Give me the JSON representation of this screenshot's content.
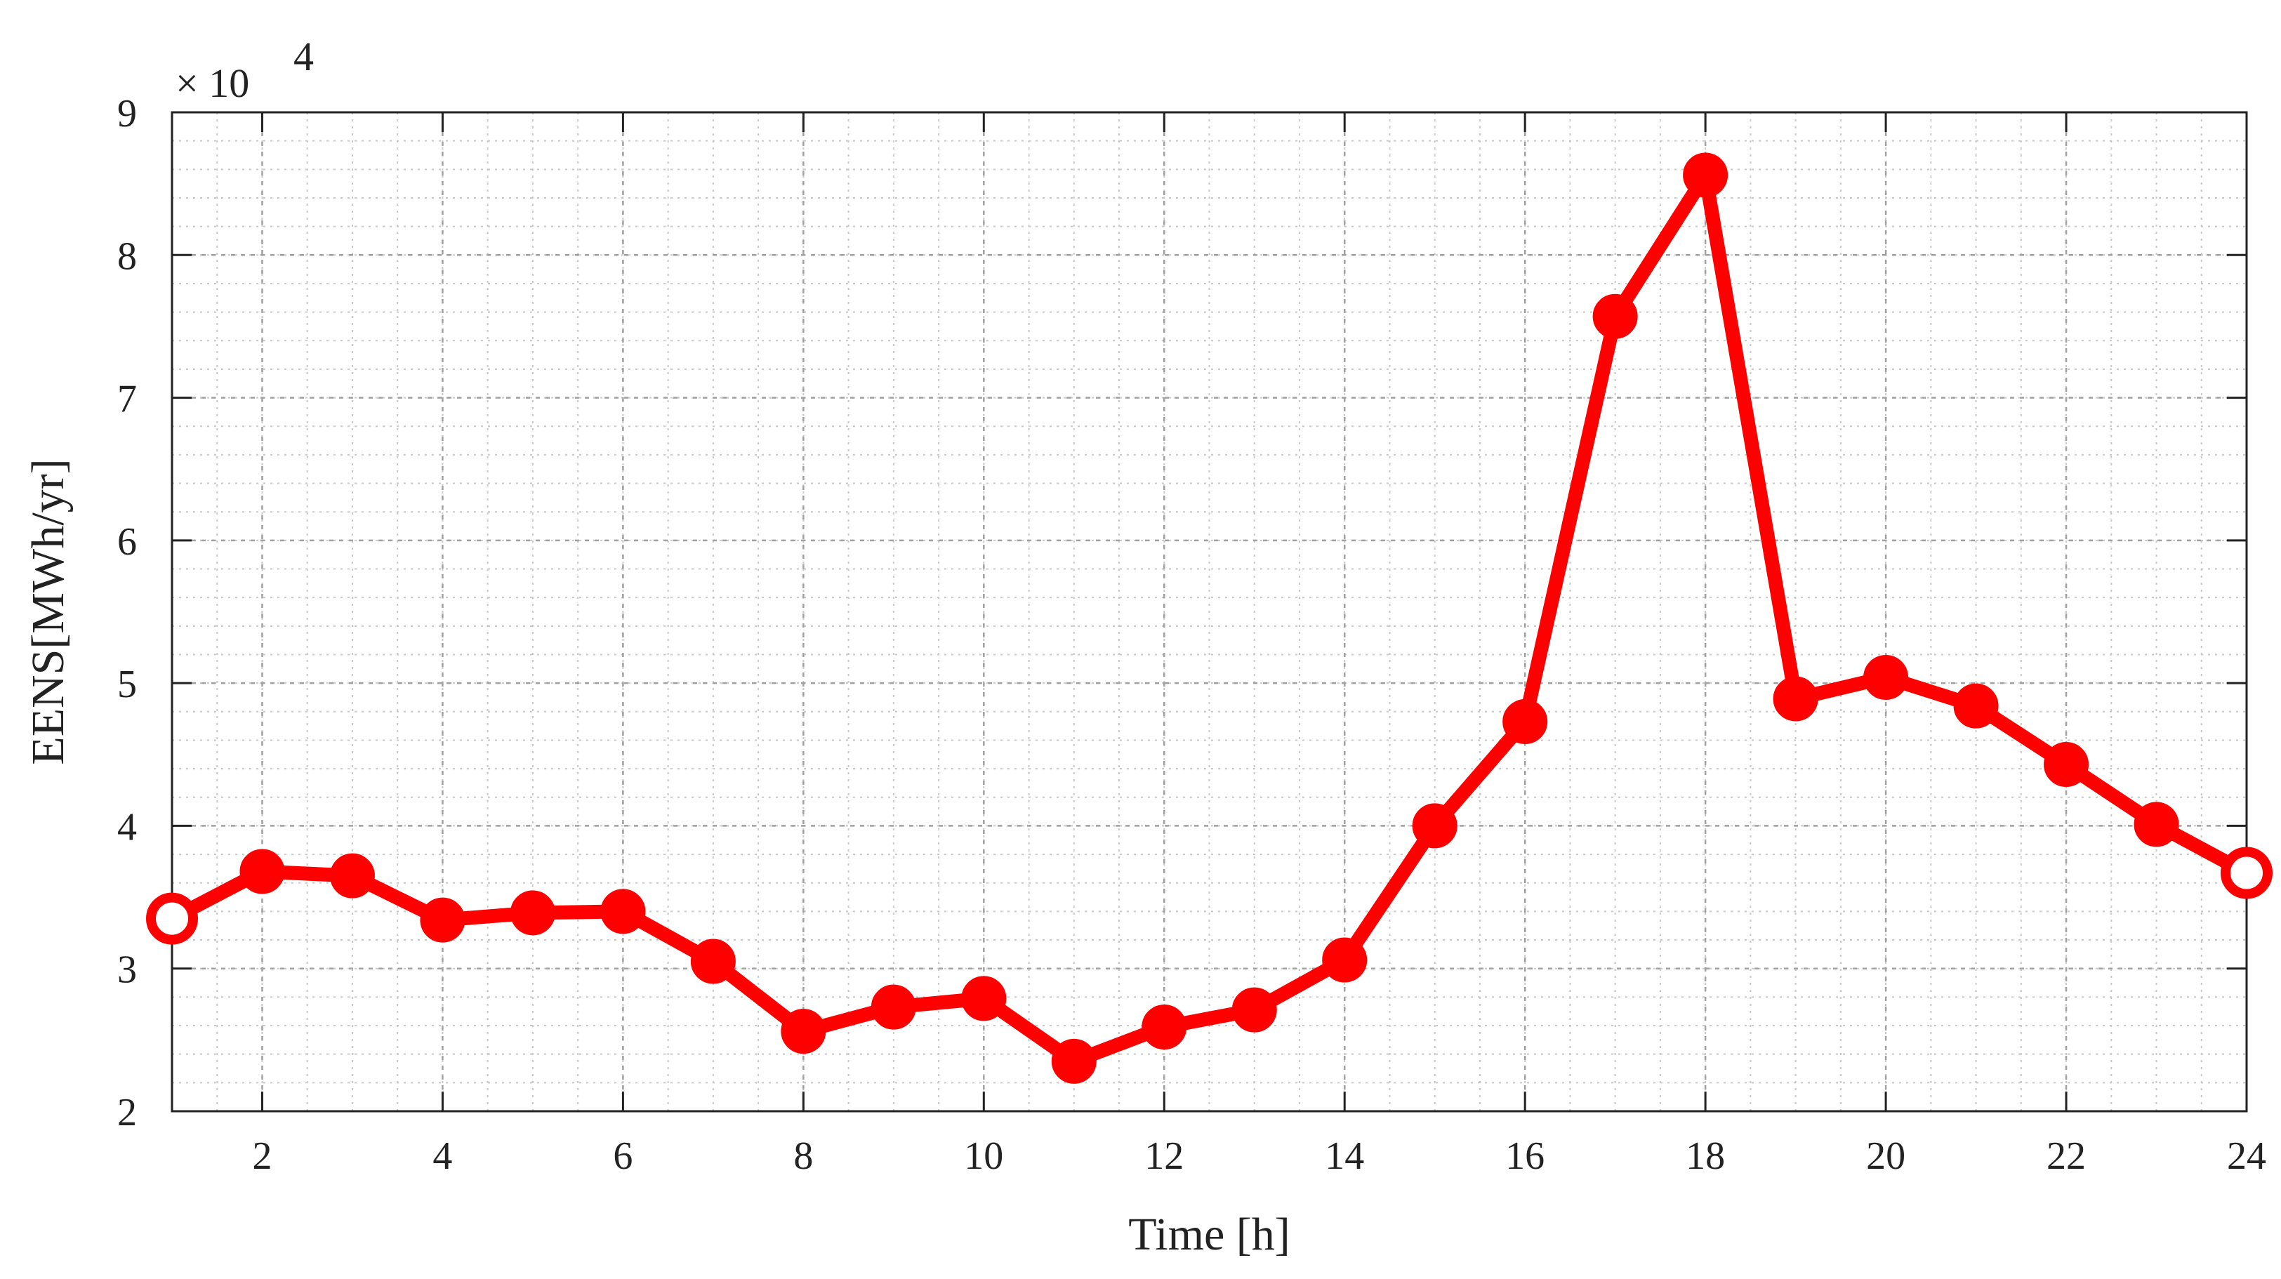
{
  "chart_data": {
    "type": "line",
    "xlabel": "Time [h]",
    "ylabel": "EENS[MWh/yr]",
    "y_multiplier_label": "× 10",
    "y_multiplier_exponent": "4",
    "xlim": [
      1,
      24
    ],
    "ylim": [
      2,
      9
    ],
    "x_ticks": [
      2,
      4,
      6,
      8,
      10,
      12,
      14,
      16,
      18,
      20,
      22,
      24
    ],
    "y_ticks": [
      2,
      3,
      4,
      5,
      6,
      7,
      8,
      9
    ],
    "grid": true,
    "minor_grid": true,
    "x_minor_step": 0.5,
    "y_minor_step": 0.2,
    "line_color": "#ff0000",
    "x": [
      1,
      2,
      3,
      4,
      5,
      6,
      7,
      8,
      9,
      10,
      11,
      12,
      13,
      14,
      15,
      16,
      17,
      18,
      19,
      20,
      21,
      22,
      23,
      24
    ],
    "values": [
      3.35,
      3.68,
      3.65,
      3.34,
      3.39,
      3.4,
      3.05,
      2.56,
      2.73,
      2.79,
      2.35,
      2.59,
      2.71,
      3.06,
      4.0,
      4.73,
      7.57,
      8.56,
      4.89,
      5.04,
      4.84,
      4.43,
      4.01,
      3.67
    ]
  }
}
